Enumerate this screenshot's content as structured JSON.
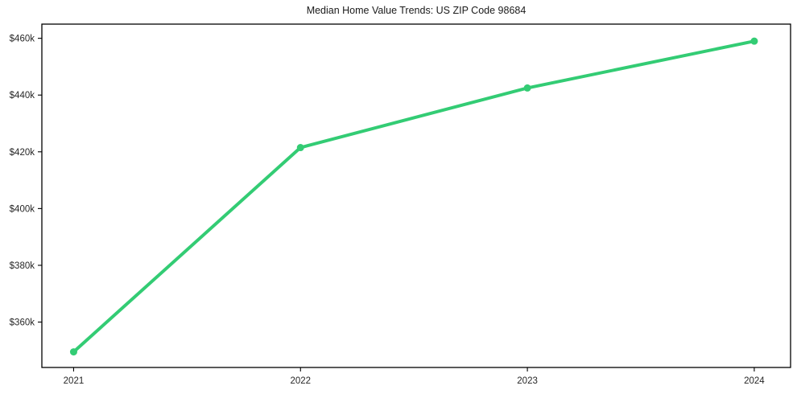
{
  "chart_data": {
    "type": "line",
    "title": "Median Home Value Trends: US ZIP Code 98684",
    "x": [
      2021,
      2022,
      2023,
      2024
    ],
    "x_tick_labels": [
      "2021",
      "2022",
      "2023",
      "2024"
    ],
    "values": [
      349500,
      421500,
      442500,
      459000
    ],
    "y_ticks": [
      360000,
      380000,
      400000,
      420000,
      440000,
      460000
    ],
    "y_tick_labels": [
      "$360k",
      "$380k",
      "$400k",
      "$420k",
      "$440k",
      "$460k"
    ],
    "xlim": [
      2020.86,
      2024.16
    ],
    "ylim": [
      344000,
      465000
    ],
    "grid": false,
    "legend": false,
    "line_color": "#33cc74",
    "marker_color": "#33cc74",
    "axis_color": "#000000",
    "tick_label_color": "#262626",
    "title_color": "#1a1a1a",
    "background_color": "#ffffff"
  }
}
